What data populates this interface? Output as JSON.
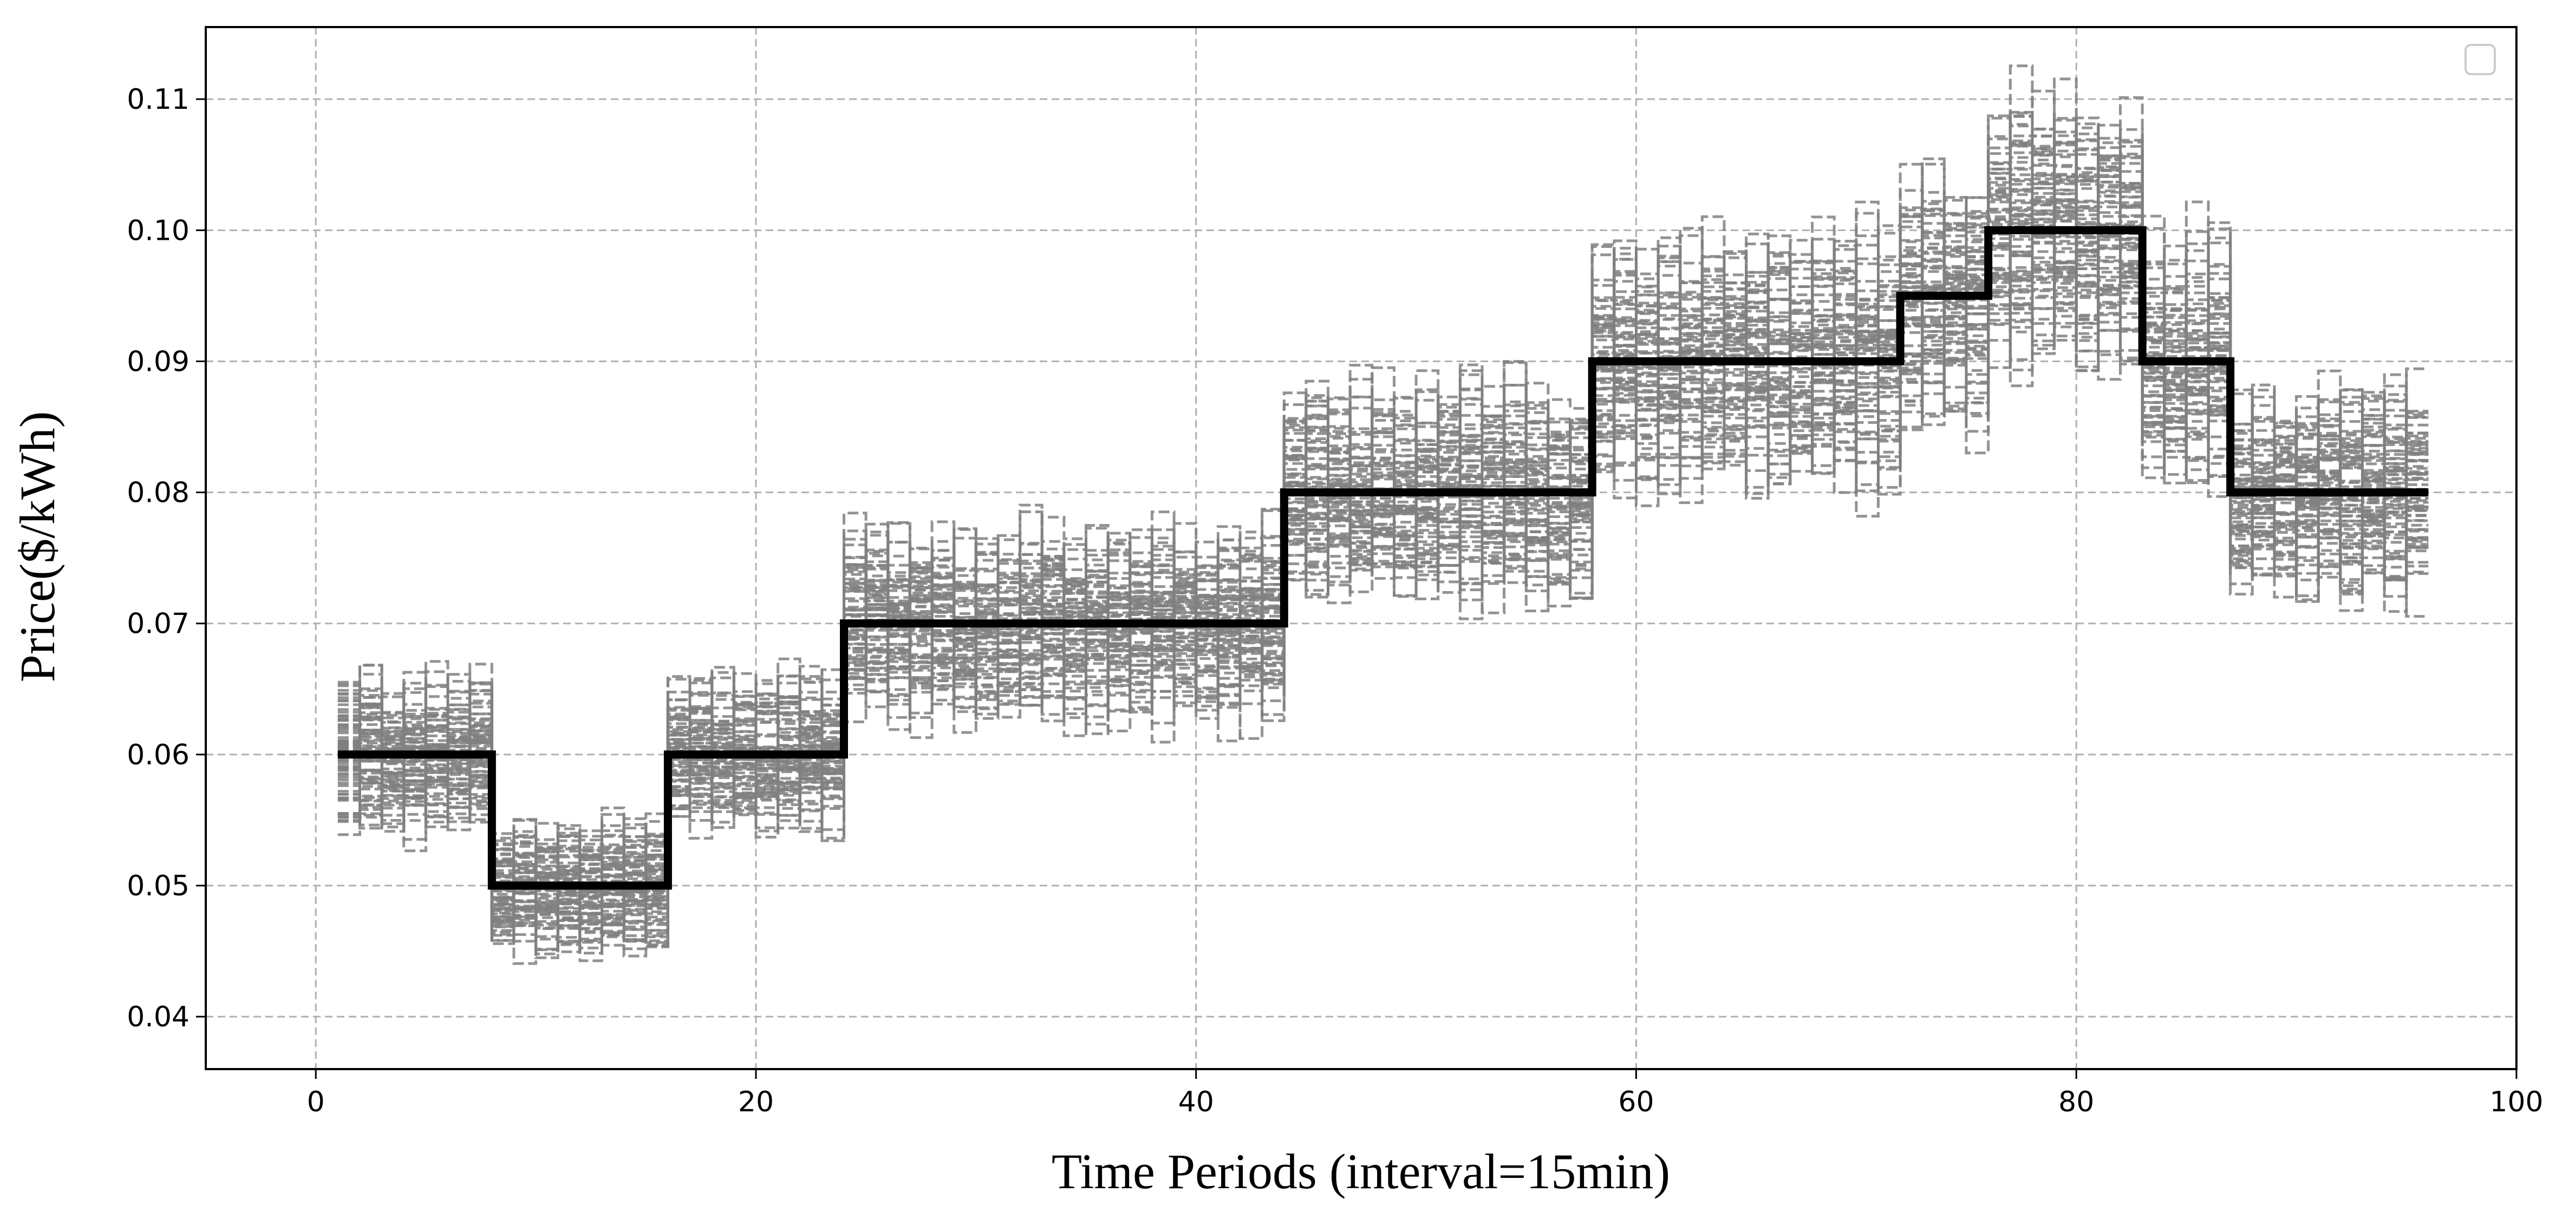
{
  "chart_data": {
    "type": "line",
    "title": "",
    "xlabel": "Time Periods (interval=15min)",
    "ylabel": "Price($/kWh)",
    "xlim": [
      -5,
      100
    ],
    "ylim": [
      0.036,
      0.1155
    ],
    "x_ticks": [
      0,
      20,
      40,
      60,
      80,
      100
    ],
    "x_tick_labels": [
      "0",
      "20",
      "40",
      "60",
      "80",
      "100"
    ],
    "y_ticks": [
      0.04,
      0.05,
      0.06,
      0.07,
      0.08,
      0.09,
      0.1,
      0.11
    ],
    "y_tick_labels": [
      "0.04",
      "0.05",
      "0.06",
      "0.07",
      "0.08",
      "0.09",
      "0.10",
      "0.11"
    ],
    "grid": true,
    "legend": {
      "placement": "top-right",
      "entries": []
    },
    "colors": {
      "base": "#000000",
      "scenarios": "#808080",
      "grid": "#b0b0b0"
    },
    "base_series": {
      "x": [
        1,
        8,
        8,
        16,
        16,
        24,
        24,
        44,
        44,
        58,
        58,
        72,
        72,
        76,
        76,
        83,
        83,
        87,
        87,
        96
      ],
      "y": [
        0.06,
        0.06,
        0.05,
        0.05,
        0.06,
        0.06,
        0.07,
        0.07,
        0.08,
        0.08,
        0.09,
        0.09,
        0.095,
        0.095,
        0.1,
        0.1,
        0.09,
        0.09,
        0.08,
        0.08
      ]
    },
    "scenario_band": {
      "x_start": 1,
      "x_end": 96,
      "segments": [
        {
          "x0": 1,
          "x1": 8,
          "base": 0.06
        },
        {
          "x0": 8,
          "x1": 16,
          "base": 0.05
        },
        {
          "x0": 16,
          "x1": 24,
          "base": 0.06
        },
        {
          "x0": 24,
          "x1": 44,
          "base": 0.07
        },
        {
          "x0": 44,
          "x1": 58,
          "base": 0.08
        },
        {
          "x0": 58,
          "x1": 72,
          "base": 0.09
        },
        {
          "x0": 72,
          "x1": 76,
          "base": 0.095
        },
        {
          "x0": 76,
          "x1": 83,
          "base": 0.1
        },
        {
          "x0": 83,
          "x1": 87,
          "base": 0.09
        },
        {
          "x0": 87,
          "x1": 96,
          "base": 0.08
        }
      ],
      "relative_spread": 0.14,
      "scenario_count": 80
    }
  }
}
